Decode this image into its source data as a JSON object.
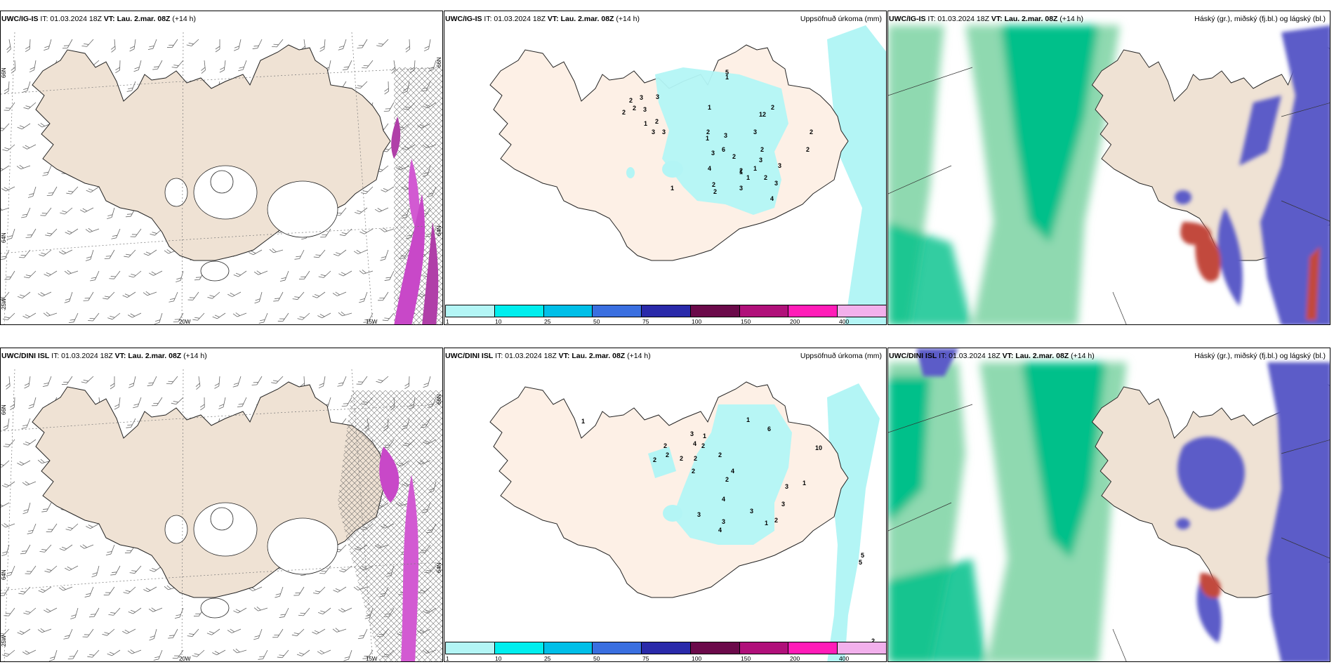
{
  "panels": [
    {
      "id": "ig-wind",
      "model": "UWC/IG-IS",
      "it": "IT: 01.03.2024 18Z",
      "vt_label": "VT:",
      "vt": "Lau. 2.mar. 08Z",
      "lead": "(+14 h)",
      "right_title": "",
      "lon_labels": [
        "20W",
        "15W"
      ],
      "lat_labels": [
        "66N",
        "64N",
        "25W",
        "66N",
        "64N"
      ]
    },
    {
      "id": "ig-precip",
      "model": "UWC/IG-IS",
      "it": "IT: 01.03.2024 18Z",
      "vt_label": "VT:",
      "vt": "Lau. 2.mar. 08Z",
      "lead": "(+14 h)",
      "right_title": "Uppsöfnuð úrkoma (mm)"
    },
    {
      "id": "ig-cloud",
      "model": "UWC/IG-IS",
      "it": "IT: 01.03.2024 18Z",
      "vt_label": "VT:",
      "vt": "Lau. 2.mar. 08Z",
      "lead": "(+14 h)",
      "right_title": "Háský (gr.), miðský (fj.bl.) og lágský (bl.)"
    },
    {
      "id": "dini-wind",
      "model": "UWC/DINI ISL",
      "it": "IT: 01.03.2024 18Z",
      "vt_label": "VT:",
      "vt": "Lau. 2.mar. 08Z",
      "lead": "(+14 h)",
      "right_title": "",
      "lon_labels": [
        "20W",
        "15W"
      ],
      "lat_labels": [
        "66N",
        "64N",
        "25W",
        "66N",
        "64N"
      ]
    },
    {
      "id": "dini-precip",
      "model": "UWC/DINI ISL",
      "it": "IT: 01.03.2024 18Z",
      "vt_label": "VT:",
      "vt": "Lau. 2.mar. 08Z",
      "lead": "(+14 h)",
      "right_title": "Uppsöfnuð úrkoma (mm)"
    },
    {
      "id": "dini-cloud",
      "model": "UWC/DINI ISL",
      "it": "IT: 01.03.2024 18Z",
      "vt_label": "VT:",
      "vt": "Lau. 2.mar. 08Z",
      "lead": "(+14 h)",
      "right_title": "Háský (gr.), miðský (fj.bl.) og lágský (bl.)"
    }
  ],
  "colorbar": {
    "labels": [
      "1",
      "10",
      "25",
      "50",
      "75",
      "100",
      "150",
      "200",
      "400"
    ],
    "colors": [
      "#b3f5f5",
      "#00eeee",
      "#00bfe8",
      "#3a6fe0",
      "#2a2aaa",
      "#6b0a4a",
      "#b0107a",
      "#ff1cb8",
      "#f2b0ec"
    ]
  },
  "precip_values": {
    "ig": [
      "1",
      "1",
      "2",
      "3",
      "2",
      "3",
      "2",
      "3",
      "1",
      "2",
      "3",
      "3",
      "1",
      "2",
      "5",
      "3",
      "1",
      "6",
      "12",
      "2",
      "3",
      "2",
      "1",
      "2",
      "2",
      "3",
      "4",
      "2",
      "2",
      "1",
      "3",
      "2",
      "3",
      "3",
      "4",
      "3",
      "1",
      "2",
      "2"
    ],
    "dini": [
      "1",
      "1",
      "2",
      "3",
      "1",
      "4",
      "6",
      "2",
      "2",
      "2",
      "2",
      "10",
      "2",
      "2",
      "2",
      "4",
      "2",
      "1",
      "3",
      "3",
      "4",
      "3",
      "3",
      "4",
      "3",
      "2",
      "1",
      "5",
      "5",
      "2"
    ]
  },
  "colors": {
    "land": "#efe2d4",
    "precip_land": "#fdf0e6",
    "ocean": "#ffffff",
    "precip_cyan": "#b3f5f5",
    "cloud_green": "#00c08a",
    "cloud_green_light": "#bfeccf",
    "cloud_blue": "#5b5bc8",
    "cloud_red": "#c24a3e",
    "magenta": "#d25ad2"
  }
}
